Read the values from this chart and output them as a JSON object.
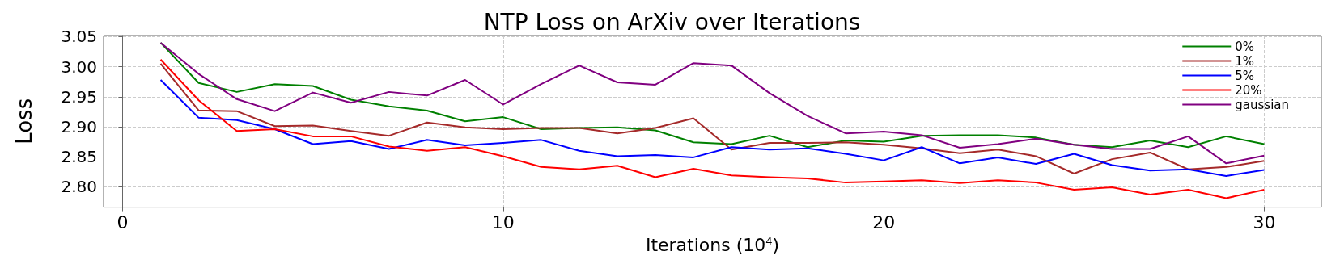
{
  "chart_data": {
    "type": "line",
    "title": "NTP Loss on ArXiv over Iterations",
    "xlabel": "Iterations (10$^{4}$)",
    "ylabel": "Loss",
    "x": [
      1,
      2,
      3,
      4,
      5,
      6,
      7,
      8,
      9,
      10,
      11,
      12,
      13,
      14,
      15,
      16,
      17,
      18,
      19,
      20,
      21,
      22,
      23,
      24,
      25,
      26,
      27,
      28,
      29,
      30
    ],
    "series": [
      {
        "name": "0%",
        "color": "#008000",
        "values": [
          3.04,
          2.973,
          2.958,
          2.971,
          2.968,
          2.945,
          2.934,
          2.927,
          2.909,
          2.916,
          2.896,
          2.898,
          2.899,
          2.894,
          2.874,
          2.871,
          2.885,
          2.866,
          2.877,
          2.875,
          2.885,
          2.886,
          2.886,
          2.882,
          2.87,
          2.866,
          2.877,
          2.866,
          2.884,
          2.871
        ]
      },
      {
        "name": "1%",
        "color": "#a52a2a",
        "values": [
          3.005,
          2.927,
          2.926,
          2.901,
          2.902,
          2.893,
          2.885,
          2.907,
          2.899,
          2.896,
          2.898,
          2.898,
          2.889,
          2.898,
          2.914,
          2.862,
          2.873,
          2.873,
          2.874,
          2.87,
          2.864,
          2.856,
          2.862,
          2.851,
          2.822,
          2.846,
          2.857,
          2.829,
          2.833,
          2.843
        ]
      },
      {
        "name": "5%",
        "color": "#0000ff",
        "values": [
          2.978,
          2.915,
          2.911,
          2.896,
          2.871,
          2.876,
          2.863,
          2.878,
          2.869,
          2.873,
          2.878,
          2.86,
          2.851,
          2.853,
          2.849,
          2.866,
          2.862,
          2.864,
          2.855,
          2.844,
          2.866,
          2.839,
          2.849,
          2.838,
          2.855,
          2.836,
          2.827,
          2.829,
          2.818,
          2.828
        ]
      },
      {
        "name": "20%",
        "color": "#ff0000",
        "values": [
          3.012,
          2.944,
          2.893,
          2.896,
          2.884,
          2.884,
          2.867,
          2.86,
          2.866,
          2.851,
          2.833,
          2.829,
          2.835,
          2.816,
          2.83,
          2.819,
          2.816,
          2.814,
          2.807,
          2.809,
          2.811,
          2.806,
          2.811,
          2.807,
          2.795,
          2.799,
          2.787,
          2.795,
          2.781,
          2.795
        ]
      },
      {
        "name": "gaussian",
        "color": "#800080",
        "values": [
          3.04,
          2.988,
          2.946,
          2.926,
          2.957,
          2.94,
          2.958,
          2.952,
          2.978,
          2.937,
          2.971,
          3.002,
          2.974,
          2.97,
          3.006,
          3.002,
          2.956,
          2.918,
          2.889,
          2.892,
          2.886,
          2.865,
          2.871,
          2.88,
          2.87,
          2.863,
          2.863,
          2.884,
          2.839,
          2.852
        ]
      }
    ],
    "xlim": [
      -0.5,
      31.5
    ],
    "xticks": [
      0,
      10,
      20,
      30
    ],
    "ylim": [
      2.766,
      3.052
    ],
    "yticks": [
      {
        "value": 2.8,
        "label": "2.80"
      },
      2.85,
      {
        "value": 2.9,
        "label": "2.90"
      },
      2.95,
      {
        "value": 3.0,
        "label": "3.00"
      },
      3.05
    ],
    "grid": true,
    "legend": "top right",
    "marker": "none",
    "line_style": "solid"
  }
}
